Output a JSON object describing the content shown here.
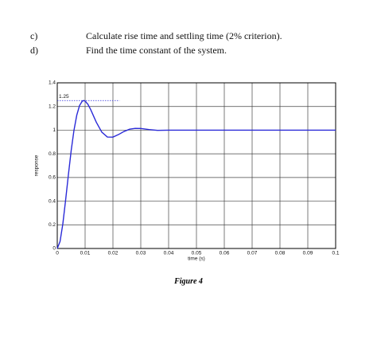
{
  "questions": [
    {
      "label": "c)",
      "text": "Calculate rise time and settling time (2% criterion)."
    },
    {
      "label": "d)",
      "text": "Find the time constant of the system."
    }
  ],
  "chart_data": {
    "type": "line",
    "x_label": "time (s)",
    "y_label": "response",
    "x": [
      0,
      0.001,
      0.002,
      0.003,
      0.004,
      0.005,
      0.006,
      0.007,
      0.008,
      0.009,
      0.0095,
      0.01,
      0.011,
      0.012,
      0.013,
      0.014,
      0.016,
      0.018,
      0.02,
      0.022,
      0.024,
      0.026,
      0.028,
      0.03,
      0.033,
      0.036,
      0.04,
      0.05,
      0.06,
      0.07,
      0.08,
      0.09,
      0.1
    ],
    "series": [
      {
        "color": "#2b2bd8",
        "values": [
          0,
          0.059,
          0.208,
          0.409,
          0.624,
          0.828,
          0.999,
          1.126,
          1.208,
          1.246,
          1.25,
          1.246,
          1.219,
          1.174,
          1.121,
          1.068,
          0.983,
          0.942,
          0.941,
          0.963,
          0.989,
          1.008,
          1.015,
          1.014,
          1.005,
          0.998,
          1,
          1,
          1,
          1,
          1,
          1,
          1
        ]
      }
    ],
    "xlim": [
      0,
      0.1
    ],
    "ylim": [
      0,
      1.4
    ],
    "xticks": [
      0,
      0.01,
      0.02,
      0.03,
      0.04,
      0.05,
      0.06,
      0.07,
      0.08,
      0.09,
      0.1
    ],
    "yticks": [
      0,
      0.2,
      0.4,
      0.6,
      0.8,
      1,
      1.2,
      1.4
    ],
    "grid": true,
    "annotations": [
      {
        "text": "1.25",
        "x": 0.0095,
        "y": 1.25
      }
    ]
  },
  "caption": "Figure 4"
}
